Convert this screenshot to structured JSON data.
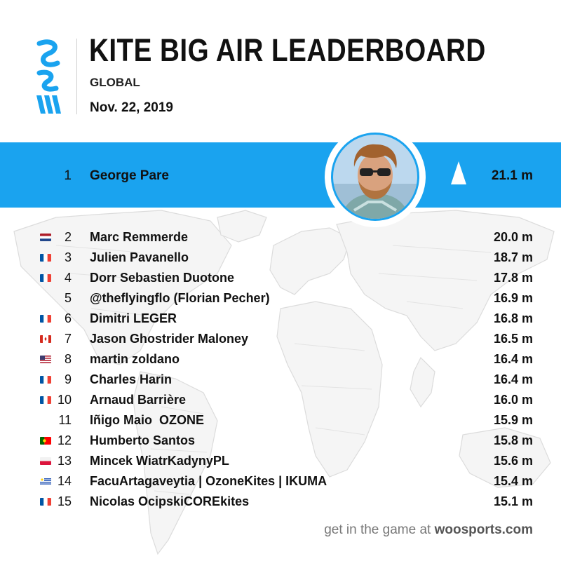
{
  "header": {
    "title": "KITE BIG AIR LEADERBOARD",
    "scope": "GLOBAL",
    "date": "Nov. 22, 2019"
  },
  "colors": {
    "accent": "#1aa3ef",
    "text": "#111111"
  },
  "leader": {
    "rank": "1",
    "name": "George Pare",
    "value": "21.1 m",
    "trend_icon": "up-arrow-icon"
  },
  "entries": [
    {
      "rank": "2",
      "name": "Marc Remmerde",
      "value": "20.0 m",
      "flag": "netherlands"
    },
    {
      "rank": "3",
      "name": "Julien Pavanello",
      "value": "18.7 m",
      "flag": "france"
    },
    {
      "rank": "4",
      "name": "Dorr Sebastien Duotone",
      "value": "17.8 m",
      "flag": "france"
    },
    {
      "rank": "5",
      "name": "@theflyingflo (Florian Pecher)",
      "value": "16.9 m",
      "flag": ""
    },
    {
      "rank": "6",
      "name": "Dimitri LEGER",
      "value": "16.8 m",
      "flag": "france"
    },
    {
      "rank": "7",
      "name": "Jason Ghostrider Maloney",
      "value": "16.5 m",
      "flag": "canada"
    },
    {
      "rank": "8",
      "name": "martin zoldano",
      "value": "16.4 m",
      "flag": "usa"
    },
    {
      "rank": "9",
      "name": "Charles Harin",
      "value": "16.4 m",
      "flag": "france"
    },
    {
      "rank": "10",
      "name": "Arnaud Barrière",
      "value": "16.0 m",
      "flag": "france"
    },
    {
      "rank": "11",
      "name": "Iñigo Maio  OZONE",
      "value": "15.9 m",
      "flag": ""
    },
    {
      "rank": "12",
      "name": "Humberto Santos",
      "value": "15.8 m",
      "flag": "portugal"
    },
    {
      "rank": "13",
      "name": "Mincek WiatrKadynyPL",
      "value": "15.6 m",
      "flag": "poland"
    },
    {
      "rank": "14",
      "name": "FacuArtagaveytia | OzoneKites | IKUMA",
      "value": "15.4 m",
      "flag": "uruguay"
    },
    {
      "rank": "15",
      "name": "Nicolas OcipskiCOREkites",
      "value": "15.1 m",
      "flag": "france"
    }
  ],
  "footer": {
    "prefix": "get in the game at ",
    "domain": "woosports.com"
  }
}
